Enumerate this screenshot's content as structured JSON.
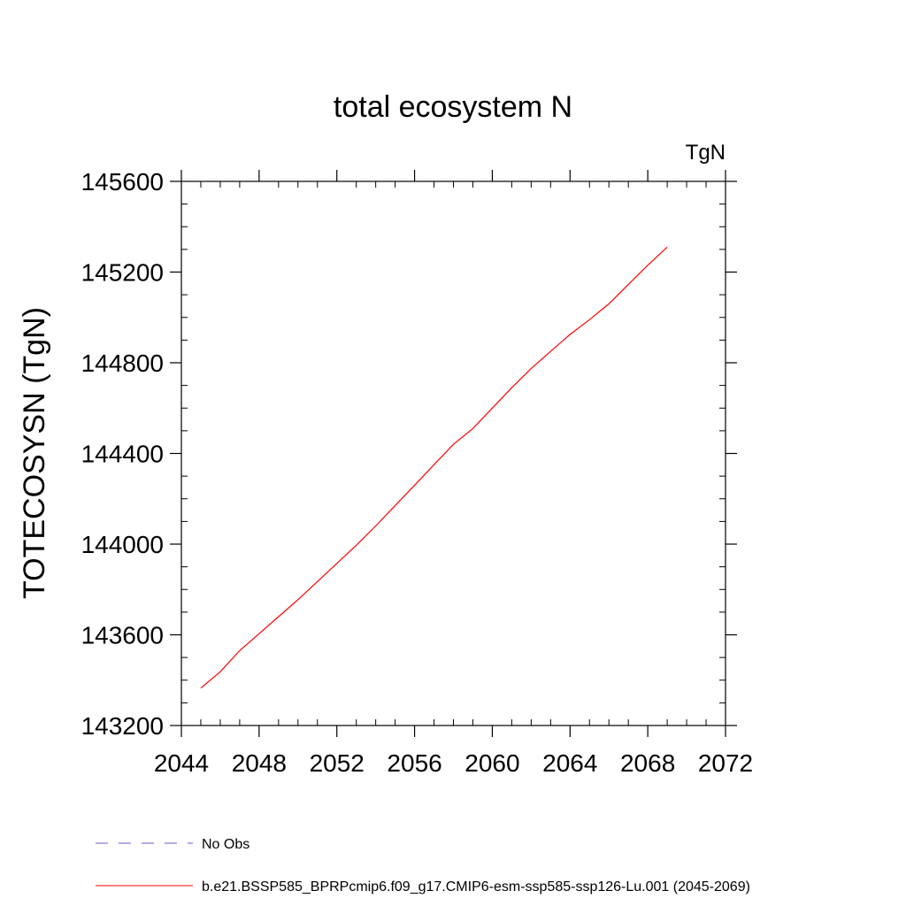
{
  "chart_data": {
    "type": "line",
    "title": "total ecosystem N",
    "units_label": "TgN",
    "xlabel": "",
    "ylabel": "TOTECOSYSN  (TgN)",
    "xlim": [
      2044,
      2072
    ],
    "ylim": [
      143200,
      145600
    ],
    "x_ticks": [
      2044,
      2048,
      2052,
      2056,
      2060,
      2064,
      2068,
      2072
    ],
    "y_ticks": [
      143200,
      143600,
      144000,
      144400,
      144800,
      145200,
      145600
    ],
    "x_tick_labels": [
      "2044",
      "2048",
      "2052",
      "2056",
      "2060",
      "2064",
      "2068",
      "2072"
    ],
    "y_tick_labels": [
      "143200",
      "143600",
      "144000",
      "144400",
      "144800",
      "145200",
      "145600"
    ],
    "grid": false,
    "legend_position": "bottom",
    "series": [
      {
        "name": "b.e21.BSSP585_BPRPcmip6.f09_g17.CMIP6-esm-ssp585-ssp126-Lu.001 (2045-2069)",
        "color": "#ff0000",
        "dash": "solid",
        "x": [
          2045,
          2046,
          2047,
          2048,
          2049,
          2050,
          2051,
          2052,
          2053,
          2054,
          2055,
          2056,
          2057,
          2058,
          2059,
          2060,
          2061,
          2062,
          2063,
          2064,
          2065,
          2066,
          2067,
          2068,
          2069
        ],
        "y": [
          143365,
          143437,
          143530,
          143605,
          143680,
          143755,
          143835,
          143915,
          143995,
          144080,
          144170,
          144260,
          144350,
          144440,
          144510,
          144600,
          144690,
          144775,
          144850,
          144925,
          144990,
          145060,
          145145,
          145230,
          145310
        ]
      }
    ],
    "legend": [
      {
        "label": "No Obs",
        "color": "#6a5acd",
        "dash": "dashed"
      },
      {
        "label": "b.e21.BSSP585_BPRPcmip6.f09_g17.CMIP6-esm-ssp585-ssp126-Lu.001 (2045-2069)",
        "color": "#ff0000",
        "dash": "solid"
      }
    ]
  }
}
